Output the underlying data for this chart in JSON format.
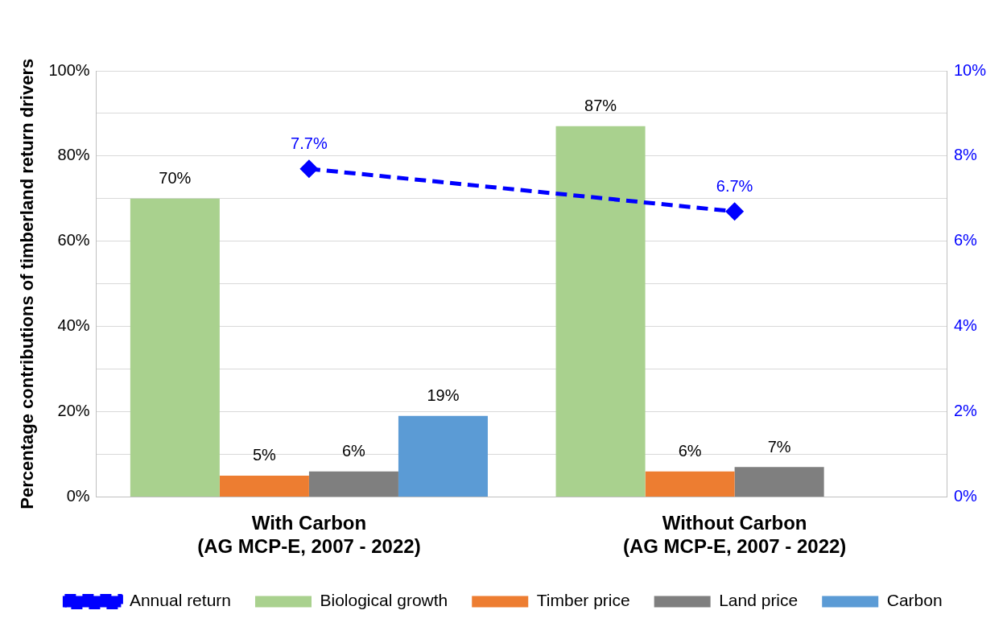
{
  "chart_data": {
    "type": "bar",
    "ylabel": "Percentage contributions of timberland return drivers",
    "categories": [
      "With Carbon\n(AG MCP-E, 2007 - 2022)",
      "Without Carbon\n(AG MCP-E, 2007 - 2022)"
    ],
    "series": [
      {
        "name": "Biological growth",
        "color": "#a9d18e",
        "values": [
          70,
          87
        ],
        "value_labels": [
          "70%",
          "87%"
        ]
      },
      {
        "name": "Timber price",
        "color": "#ed7d31",
        "values": [
          5,
          6
        ],
        "value_labels": [
          "5%",
          "6%"
        ]
      },
      {
        "name": "Land price",
        "color": "#7f7f7f",
        "values": [
          6,
          7
        ],
        "value_labels": [
          "6%",
          "7%"
        ]
      },
      {
        "name": "Carbon",
        "color": "#5b9bd5",
        "values": [
          19,
          null
        ],
        "value_labels": [
          "19%",
          null
        ]
      },
      {
        "name": "Annual return",
        "type": "line",
        "axis": "y2",
        "color": "#0000ff",
        "values": [
          7.7,
          6.7
        ],
        "value_labels": [
          "7.7%",
          "6.7%"
        ],
        "marker": "diamond",
        "line_style": "dashed"
      }
    ],
    "ylim": [
      0,
      100
    ],
    "yticks": [
      {
        "value": 0,
        "label": "0%"
      },
      {
        "value": 10,
        "label": null
      },
      {
        "value": 20,
        "label": "20%"
      },
      {
        "value": 30,
        "label": null
      },
      {
        "value": 40,
        "label": "40%"
      },
      {
        "value": 50,
        "label": null
      },
      {
        "value": 60,
        "label": "60%"
      },
      {
        "value": 70,
        "label": null
      },
      {
        "value": 80,
        "label": "80%"
      },
      {
        "value": 90,
        "label": null
      },
      {
        "value": 100,
        "label": "100%"
      }
    ],
    "y2lim": [
      0,
      10
    ],
    "y2ticks": [
      {
        "value": 0,
        "label": "0%"
      },
      {
        "value": 2,
        "label": "2%"
      },
      {
        "value": 4,
        "label": "4%"
      },
      {
        "value": 6,
        "label": "6%"
      },
      {
        "value": 8,
        "label": "8%"
      },
      {
        "value": 10,
        "label": "10%"
      }
    ],
    "grid": "y",
    "legend": "bottom"
  }
}
